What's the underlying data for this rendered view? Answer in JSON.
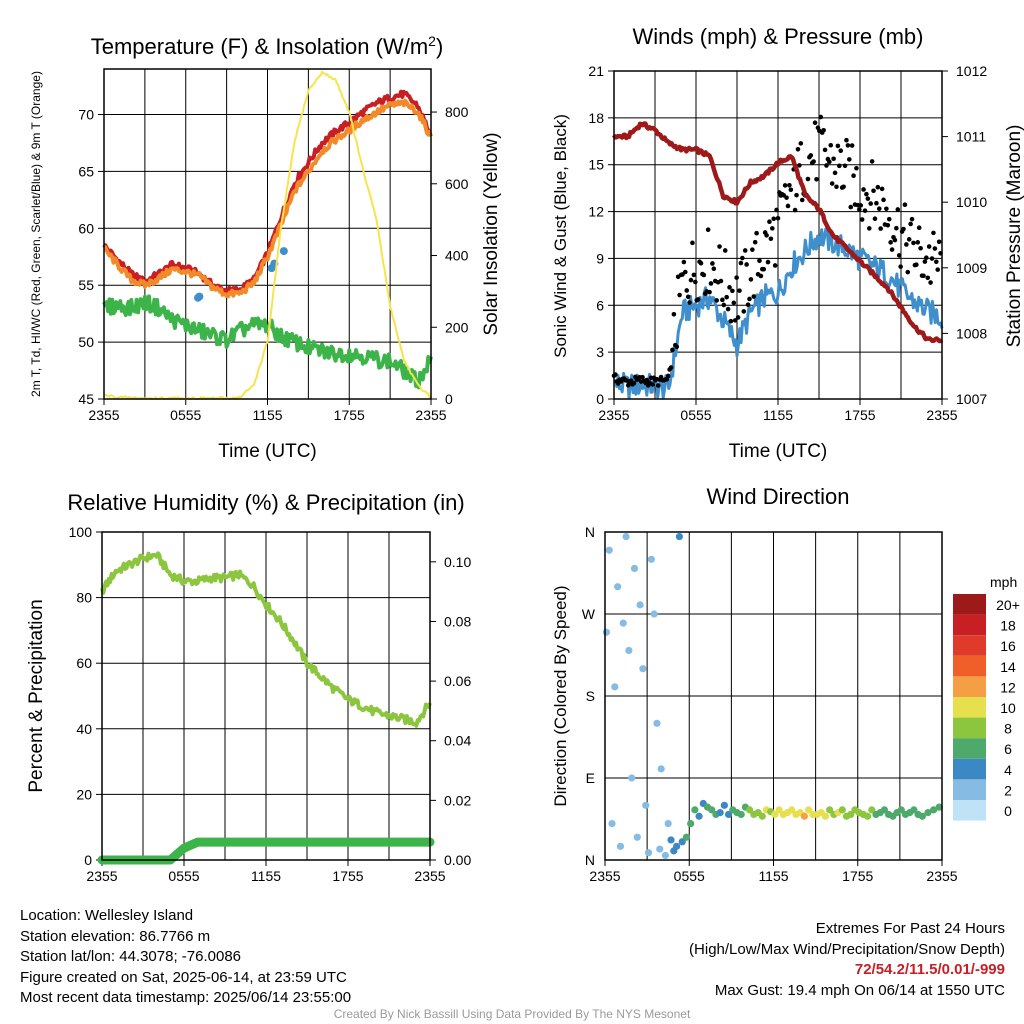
{
  "chart_data": [
    {
      "id": "temp",
      "type": "line",
      "title": "Temperature (F) & Insolation (W/m²)",
      "xlabel": "Time (UTC)",
      "ylabel": "2m T, Td, HI/WC (Red, Green, Scarlet/Blue) & 9m T (Orange)",
      "ylabel_right": "Solar Insolation (Yellow)",
      "x_ticks": [
        "2355",
        "0555",
        "1155",
        "1755",
        "2355"
      ],
      "ylim": [
        45,
        74
      ],
      "y_ticks": [
        45,
        50,
        55,
        60,
        65,
        70
      ],
      "ylim_right": [
        0,
        920
      ],
      "y_ticks_right": [
        0,
        200,
        400,
        600,
        800
      ],
      "x_hours": [
        0,
        1,
        2,
        3,
        4,
        5,
        6,
        7,
        8,
        9,
        10,
        11,
        12,
        13,
        14,
        15,
        16,
        17,
        18,
        19,
        20,
        21,
        22,
        23,
        24
      ],
      "series": [
        {
          "key": "temp_2m",
          "color": "#c81f25",
          "axis": "left",
          "values": [
            58.5,
            57.2,
            56.0,
            55.3,
            56.0,
            56.8,
            56.5,
            56.0,
            55.0,
            54.5,
            54.6,
            55.5,
            57.8,
            61.0,
            64.0,
            65.8,
            67.5,
            68.5,
            69.3,
            70.2,
            71.0,
            71.5,
            71.8,
            70.8,
            68.2
          ]
        },
        {
          "key": "temp_9m",
          "color": "#f28a2a",
          "axis": "left",
          "values": [
            58.2,
            56.8,
            55.5,
            55.0,
            55.6,
            56.4,
            56.2,
            55.8,
            54.8,
            54.2,
            54.3,
            55.2,
            57.5,
            60.3,
            63.3,
            65.0,
            66.8,
            67.8,
            68.6,
            69.5,
            70.2,
            70.8,
            71.0,
            70.3,
            68.0
          ]
        },
        {
          "key": "dewpoint",
          "color": "#3cb44a",
          "axis": "left",
          "values": [
            53.0,
            53.2,
            53.0,
            53.5,
            53.0,
            52.0,
            51.5,
            51.0,
            50.6,
            50.2,
            51.0,
            51.5,
            51.5,
            50.5,
            50.0,
            49.5,
            49.2,
            49.0,
            49.0,
            48.8,
            48.5,
            48.3,
            47.5,
            46.5,
            48.5
          ]
        },
        {
          "key": "heat_index",
          "color": "#3f8fcc",
          "axis": "left",
          "points": true,
          "x": [
            6.9,
            7.0,
            12.3,
            12.5,
            13.2
          ],
          "values": [
            53.9,
            54.0,
            56.5,
            56.9,
            58.0
          ]
        },
        {
          "key": "insolation",
          "color": "#f7e44c",
          "axis": "right",
          "values": [
            10,
            5,
            3,
            2,
            2,
            2,
            2,
            2,
            2,
            2,
            4,
            40,
            160,
            480,
            720,
            860,
            910,
            890,
            800,
            640,
            500,
            260,
            110,
            40,
            5
          ]
        }
      ]
    },
    {
      "id": "wind",
      "type": "line",
      "title": "Winds (mph) & Pressure (mb)",
      "xlabel": "Time (UTC)",
      "ylabel": "Sonic Wind & Gust (Blue, Black)",
      "ylabel_right": "Station Pressure (Maroon)",
      "x_ticks": [
        "2355",
        "0555",
        "1155",
        "1755",
        "2355"
      ],
      "ylim": [
        0,
        21
      ],
      "y_ticks": [
        0,
        3,
        6,
        9,
        12,
        15,
        18,
        21
      ],
      "ylim_right": [
        1007,
        1012
      ],
      "y_ticks_right": [
        1007,
        1008,
        1009,
        1010,
        1011,
        1012
      ],
      "x_hours": [
        0,
        1,
        2,
        3,
        4,
        5,
        6,
        7,
        8,
        9,
        10,
        11,
        12,
        13,
        14,
        15,
        16,
        17,
        18,
        19,
        20,
        21,
        22,
        23,
        24
      ],
      "series": [
        {
          "key": "wind_speed",
          "color": "#3f8fcc",
          "axis": "left",
          "values": [
            1.0,
            0.8,
            0.9,
            0.8,
            0.7,
            5.5,
            6.0,
            6.5,
            5.0,
            3.5,
            5.5,
            6.5,
            6.8,
            8.5,
            9.5,
            10.5,
            10.0,
            9.6,
            9.0,
            8.5,
            8.0,
            7.0,
            6.2,
            5.6,
            5.2
          ]
        },
        {
          "key": "wind_gust",
          "color": "#000000",
          "axis": "left",
          "points": true,
          "values": [
            1.3,
            1.1,
            1.2,
            1.1,
            1.2,
            7.5,
            8.5,
            8.8,
            7.5,
            6.5,
            8.0,
            9.5,
            11.0,
            13.5,
            15.0,
            16.0,
            15.0,
            14.5,
            13.5,
            13.0,
            12.0,
            10.5,
            9.5,
            8.8,
            8.5
          ]
        },
        {
          "key": "pressure",
          "color": "#9e1a1a",
          "axis": "right",
          "values": [
            1011.0,
            1011.0,
            1011.2,
            1011.1,
            1010.9,
            1010.8,
            1010.8,
            1010.7,
            1010.1,
            1010.0,
            1010.3,
            1010.4,
            1010.6,
            1010.7,
            1010.1,
            1009.9,
            1009.5,
            1009.3,
            1009.1,
            1008.9,
            1008.7,
            1008.4,
            1008.1,
            1007.9,
            1007.9
          ]
        }
      ]
    },
    {
      "id": "rh",
      "type": "line",
      "title": "Relative Humidity (%) & Precipitation (in)",
      "ylabel": "Percent & Precipitation",
      "x_ticks": [
        "2355",
        "0555",
        "1155",
        "1755",
        "2355"
      ],
      "ylim": [
        0,
        100
      ],
      "y_ticks": [
        0,
        20,
        40,
        60,
        80,
        100
      ],
      "ylim_right": [
        0,
        0.11
      ],
      "y_ticks_right": [
        "0.00",
        "0.02",
        "0.04",
        "0.06",
        "0.08",
        "0.10"
      ],
      "x_hours": [
        0,
        1,
        2,
        3,
        4,
        5,
        6,
        7,
        8,
        9,
        10,
        11,
        12,
        13,
        14,
        15,
        16,
        17,
        18,
        19,
        20,
        21,
        22,
        23,
        24
      ],
      "series": [
        {
          "key": "rh",
          "color": "#8cc63e",
          "axis": "left",
          "values": [
            82,
            88,
            90,
            92,
            93,
            87,
            85,
            85,
            86,
            86,
            87,
            84,
            78,
            73,
            67,
            60,
            56,
            52,
            49,
            47,
            45,
            44,
            43,
            42,
            48
          ]
        },
        {
          "key": "precip",
          "color": "#3cb44a",
          "axis": "right",
          "values": [
            0,
            0,
            0,
            0,
            0,
            0,
            0.004,
            0.006,
            0.006,
            0.006,
            0.006,
            0.006,
            0.006,
            0.006,
            0.006,
            0.006,
            0.006,
            0.006,
            0.006,
            0.006,
            0.006,
            0.006,
            0.006,
            0.006,
            0.006
          ]
        }
      ]
    },
    {
      "id": "dir",
      "type": "scatter",
      "title": "Wind Direction",
      "ylabel": "Direction (Colored By Speed)",
      "x_ticks": [
        "2355",
        "0555",
        "1155",
        "1755",
        "2355"
      ],
      "y_ticks": [
        "N",
        "E",
        "S",
        "W",
        "N"
      ],
      "ylim": [
        0,
        360
      ],
      "legend_title": "mph",
      "legend_labels": [
        "20+",
        "18",
        "16",
        "14",
        "12",
        "10",
        "8",
        "6",
        "4",
        "2",
        "0"
      ],
      "legend_colors": [
        "#9e1a1a",
        "#c81f25",
        "#df3a2a",
        "#f05f2a",
        "#f59e43",
        "#e6df4e",
        "#8cc63e",
        "#4daa6a",
        "#3c88c4",
        "#86bce3",
        "#bfe2f7"
      ],
      "points": {
        "x": [
          0.1,
          0.3,
          0.5,
          0.7,
          0.9,
          1.1,
          1.3,
          1.5,
          1.7,
          1.9,
          2.1,
          2.3,
          2.5,
          2.7,
          2.9,
          3.1,
          3.3,
          3.5,
          3.7,
          3.9,
          4.0,
          4.3,
          4.5,
          4.7,
          4.9,
          5.1,
          5.3,
          5.5,
          5.8,
          6.1,
          6.4,
          6.7,
          7.0,
          7.3,
          7.6,
          7.9,
          8.2,
          8.5,
          8.8,
          9.1,
          9.4,
          9.7,
          10.0,
          10.3,
          10.6,
          10.9,
          11.2,
          11.5,
          11.8,
          12.1,
          12.4,
          12.7,
          13.0,
          13.3,
          13.6,
          13.9,
          14.2,
          14.5,
          14.8,
          15.1,
          15.4,
          15.7,
          16.0,
          16.3,
          16.6,
          16.9,
          17.2,
          17.5,
          17.8,
          18.1,
          18.4,
          18.7,
          19.0,
          19.3,
          19.6,
          19.9,
          20.2,
          20.5,
          20.8,
          21.1,
          21.4,
          21.7,
          22.0,
          22.3,
          22.6,
          23.0,
          23.4,
          23.8
        ],
        "dir": [
          250,
          340,
          40,
          190,
          300,
          15,
          260,
          355,
          230,
          90,
          320,
          25,
          280,
          210,
          60,
          8,
          330,
          270,
          150,
          12,
          100,
          5,
          40,
          22,
          10,
          15,
          355,
          20,
          25,
          40,
          55,
          48,
          62,
          58,
          55,
          50,
          52,
          60,
          50,
          55,
          52,
          50,
          58,
          55,
          50,
          52,
          48,
          55,
          53,
          50,
          55,
          50,
          52,
          55,
          50,
          52,
          48,
          55,
          50,
          50,
          52,
          48,
          55,
          50,
          52,
          55,
          48,
          50,
          55,
          52,
          50,
          48,
          55,
          50,
          52,
          55,
          50,
          48,
          52,
          55,
          50,
          52,
          55,
          50,
          48,
          52,
          55,
          58
        ],
        "speed": [
          1,
          1,
          1,
          1,
          1,
          1,
          1,
          1,
          1,
          1,
          1,
          1,
          1,
          1,
          1,
          1,
          1,
          1,
          1,
          1,
          1,
          1,
          1,
          4,
          4,
          4,
          4,
          4,
          5,
          6,
          5,
          4,
          4,
          5,
          6,
          5,
          4,
          3,
          4,
          5,
          6,
          5,
          6,
          7,
          7,
          8,
          8,
          9,
          8,
          9,
          10,
          10,
          9,
          9,
          10,
          10,
          11,
          10,
          9,
          10,
          9,
          9,
          8,
          8,
          9,
          8,
          8,
          8,
          7,
          8,
          7,
          7,
          7,
          6,
          6,
          6,
          6,
          6,
          6,
          5,
          5,
          5,
          5,
          5,
          5,
          5,
          5,
          5
        ]
      }
    }
  ],
  "info": {
    "location": "Location: Wellesley Island",
    "elevation": "Station elevation: 86.7766 m",
    "latlon": "Station lat/lon: 44.3078; -76.0086",
    "created": "Figure created on Sat, 2025-06-14, at 23:59 UTC",
    "recent": "Most recent data timestamp: 2025/06/14 23:55:00",
    "extremes_title": "Extremes For Past 24 Hours",
    "extremes_fields": "(High/Low/Max Wind/Precipitation/Snow Depth)",
    "extremes_values": "72/54.2/11.5/0.01/-999",
    "max_gust": "Max Gust: 19.4 mph On 06/14 at 1550 UTC",
    "footer": "Created By Nick Bassill Using Data Provided By The NYS Mesonet"
  }
}
